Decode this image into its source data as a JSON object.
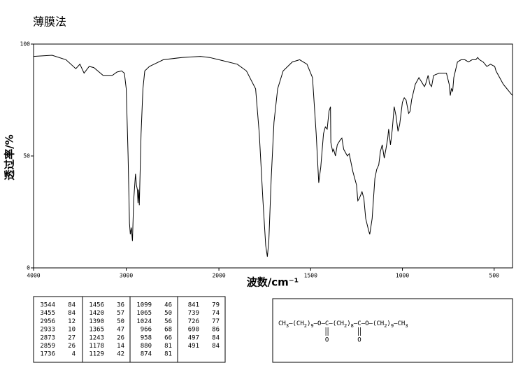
{
  "chart_data": {
    "type": "line",
    "title": "薄膜法",
    "xlabel": "波数/cm⁻¹",
    "ylabel": "透过率/%",
    "color": "#000000",
    "xlim": [
      4000,
      400
    ],
    "x_scale_break": 2000,
    "xticks": [
      4000,
      3000,
      2000,
      1500,
      1000,
      500
    ],
    "ylim": [
      0,
      100
    ],
    "yticks": [
      0,
      50,
      100
    ],
    "x": [
      4000,
      3800,
      3650,
      3544,
      3500,
      3455,
      3400,
      3350,
      3250,
      3150,
      3100,
      3050,
      3020,
      3000,
      2980,
      2965,
      2956,
      2945,
      2933,
      2920,
      2900,
      2890,
      2880,
      2873,
      2865,
      2859,
      2840,
      2820,
      2800,
      2750,
      2700,
      2600,
      2400,
      2200,
      2100,
      2000,
      1900,
      1850,
      1800,
      1780,
      1760,
      1745,
      1736,
      1728,
      1715,
      1700,
      1680,
      1650,
      1600,
      1560,
      1520,
      1490,
      1470,
      1456,
      1445,
      1430,
      1420,
      1410,
      1400,
      1392,
      1390,
      1380,
      1375,
      1365,
      1355,
      1340,
      1330,
      1320,
      1300,
      1290,
      1270,
      1250,
      1243,
      1235,
      1220,
      1210,
      1200,
      1185,
      1178,
      1165,
      1150,
      1140,
      1129,
      1120,
      1110,
      1099,
      1090,
      1080,
      1075,
      1065,
      1055,
      1045,
      1035,
      1024,
      1015,
      1000,
      990,
      980,
      966,
      958,
      950,
      930,
      910,
      880,
      874,
      860,
      850,
      841,
      830,
      800,
      760,
      745,
      739,
      733,
      726,
      720,
      700,
      680,
      660,
      640,
      620,
      600,
      590,
      580,
      560,
      540,
      520,
      497,
      490,
      470,
      450,
      430,
      410,
      400
    ],
    "values": [
      94.5,
      95,
      93,
      89,
      91,
      87,
      90,
      89.5,
      86,
      86,
      87.5,
      88,
      87,
      80,
      50,
      20,
      15,
      18,
      12,
      30,
      42,
      37,
      35,
      29,
      35,
      28,
      60,
      80,
      88,
      90,
      91,
      93,
      94,
      94.5,
      94,
      93,
      91,
      88,
      80,
      60,
      30,
      10,
      5,
      12,
      40,
      65,
      80,
      88,
      92,
      93,
      91,
      85,
      60,
      38,
      45,
      60,
      63,
      62,
      70,
      72,
      56,
      52,
      53,
      50,
      55,
      57,
      58,
      53,
      50,
      51,
      43,
      37,
      30,
      31,
      34,
      31,
      22,
      17,
      15,
      22,
      40,
      44,
      46,
      52,
      55,
      49,
      53,
      58,
      62,
      55,
      62,
      72,
      68,
      61,
      64,
      74,
      76,
      75,
      69,
      70,
      75,
      82,
      85,
      81,
      82,
      86,
      82,
      81,
      86,
      87,
      87,
      82,
      77,
      80,
      79,
      85,
      92,
      93,
      93,
      92,
      93,
      93,
      94,
      93,
      92,
      90,
      91,
      90,
      88,
      85,
      82,
      80,
      78,
      77
    ]
  },
  "peak_table": [
    [
      [
        3544,
        84
      ],
      [
        3455,
        84
      ],
      [
        2956,
        12
      ],
      [
        2933,
        10
      ],
      [
        2873,
        27
      ],
      [
        2859,
        26
      ],
      [
        1736,
        4
      ]
    ],
    [
      [
        1456,
        36
      ],
      [
        1420,
        57
      ],
      [
        1390,
        50
      ],
      [
        1365,
        47
      ],
      [
        1243,
        26
      ],
      [
        1178,
        14
      ],
      [
        1129,
        42
      ]
    ],
    [
      [
        1099,
        46
      ],
      [
        1065,
        50
      ],
      [
        1024,
        56
      ],
      [
        966,
        68
      ],
      [
        958,
        66
      ],
      [
        880,
        81
      ],
      [
        874,
        81
      ]
    ],
    [
      [
        841,
        79
      ],
      [
        739,
        74
      ],
      [
        726,
        77
      ],
      [
        690,
        86
      ],
      [
        497,
        84
      ],
      [
        491,
        84
      ]
    ]
  ],
  "structure": {
    "chain": [
      "CH",
      "3",
      "—(CH",
      "2",
      ")",
      "9",
      "—O—",
      "C",
      "—(CH",
      "2",
      ")",
      "8",
      "—",
      "C",
      "—O—(CH",
      "2",
      ")",
      "9",
      "—CH",
      "3"
    ],
    "oxygens": [
      "O",
      "O"
    ]
  }
}
